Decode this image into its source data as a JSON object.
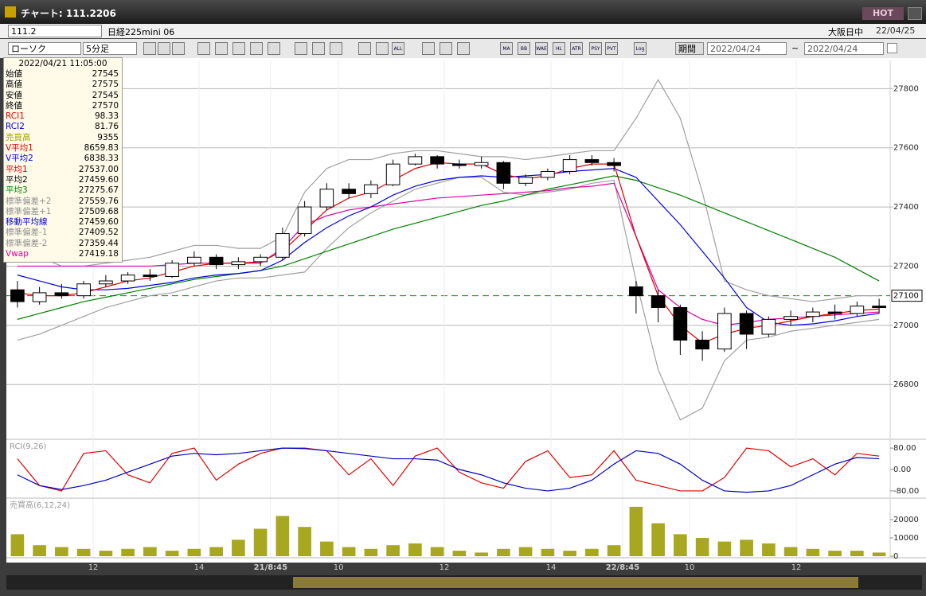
{
  "window": {
    "title": "チャート: 111.2206",
    "hot_button": "HOT"
  },
  "header": {
    "symbol_code": "111.2",
    "symbol_name": "日経225mini 06",
    "session": "大阪日中",
    "date": "22/04/25"
  },
  "toolbar": {
    "chart_style": "ローソク",
    "interval": "5分足",
    "icon_labels": [
      "ALL",
      "MA",
      "BB",
      "WAE",
      "HL",
      "ATR",
      "PSY",
      "PVT",
      "Log"
    ],
    "period_button": "期間",
    "date_from": "2022/04/24",
    "range_sep": "~",
    "date_to": "2022/04/24"
  },
  "info_panel": {
    "datetime": "2022/04/21 11:05:00",
    "rows": [
      {
        "label": "始値",
        "value": "27545",
        "color": "#000000"
      },
      {
        "label": "高値",
        "value": "27575",
        "color": "#000000"
      },
      {
        "label": "安値",
        "value": "27545",
        "color": "#000000"
      },
      {
        "label": "終値",
        "value": "27570",
        "color": "#000000"
      },
      {
        "label": "RCI1",
        "value": "98.33",
        "color": "#e00000"
      },
      {
        "label": "RCI2",
        "value": "81.76",
        "color": "#0000e0"
      },
      {
        "label": "売買高",
        "value": "9355",
        "color": "#a0a000"
      },
      {
        "label": "V平均1",
        "value": "8659.83",
        "color": "#e00000"
      },
      {
        "label": "V平均2",
        "value": "6838.33",
        "color": "#0000e0"
      },
      {
        "label": "平均1",
        "value": "27537.00",
        "color": "#e00000"
      },
      {
        "label": "平均2",
        "value": "27459.60",
        "color": "#000000"
      },
      {
        "label": "平均3",
        "value": "27275.67",
        "color": "#008000"
      },
      {
        "label": "標準偏差+2",
        "value": "27559.76",
        "color": "#909090"
      },
      {
        "label": "標準偏差+1",
        "value": "27509.68",
        "color": "#909090"
      },
      {
        "label": "移動平均線",
        "value": "27459.60",
        "color": "#0000e0"
      },
      {
        "label": "標準偏差-1",
        "value": "27409.52",
        "color": "#909090"
      },
      {
        "label": "標準偏差-2",
        "value": "27359.44",
        "color": "#909090"
      },
      {
        "label": "Vwap",
        "value": "27419.18",
        "color": "#e000a0"
      }
    ]
  },
  "chart_data": [
    {
      "type": "candlestick",
      "xlim": [
        0,
        40
      ],
      "xticks": [
        {
          "value": 3.93,
          "label": "12"
        },
        {
          "value": 8.72,
          "label": "14"
        },
        {
          "value": 11.96,
          "label": "21/8:45"
        },
        {
          "value": 15.03,
          "label": "10"
        },
        {
          "value": 19.82,
          "label": "12"
        },
        {
          "value": 24.65,
          "label": "14"
        },
        {
          "value": 27.89,
          "label": "22/8:45"
        },
        {
          "value": 30.92,
          "label": "10"
        },
        {
          "value": 35.75,
          "label": "12"
        }
      ],
      "ylim": [
        26615,
        27895
      ],
      "yticks": [
        26800,
        27000,
        27200,
        27400,
        27600,
        27800
      ],
      "grid": true,
      "reference_line": 27100,
      "candles": [
        [
          27120,
          27150,
          27060,
          27080
        ],
        [
          27080,
          27130,
          27070,
          27110
        ],
        [
          27110,
          27140,
          27090,
          27100
        ],
        [
          27100,
          27150,
          27090,
          27140
        ],
        [
          27140,
          27170,
          27130,
          27150
        ],
        [
          27150,
          27180,
          27140,
          27170
        ],
        [
          27170,
          27190,
          27150,
          27165
        ],
        [
          27165,
          27220,
          27160,
          27210
        ],
        [
          27210,
          27250,
          27200,
          27230
        ],
        [
          27230,
          27240,
          27190,
          27205
        ],
        [
          27205,
          27230,
          27190,
          27215
        ],
        [
          27215,
          27240,
          27200,
          27230
        ],
        [
          27230,
          27330,
          27220,
          27310
        ],
        [
          27310,
          27420,
          27300,
          27400
        ],
        [
          27400,
          27480,
          27390,
          27460
        ],
        [
          27460,
          27480,
          27430,
          27445
        ],
        [
          27445,
          27490,
          27430,
          27475
        ],
        [
          27475,
          27560,
          27470,
          27545
        ],
        [
          27545,
          27580,
          27540,
          27570
        ],
        [
          27570,
          27575,
          27530,
          27545
        ],
        [
          27545,
          27560,
          27530,
          27540
        ],
        [
          27540,
          27570,
          27530,
          27550
        ],
        [
          27550,
          27555,
          27460,
          27480
        ],
        [
          27480,
          27510,
          27470,
          27500
        ],
        [
          27500,
          27530,
          27490,
          27520
        ],
        [
          27520,
          27575,
          27510,
          27560
        ],
        [
          27560,
          27575,
          27540,
          27550
        ],
        [
          27550,
          27565,
          27520,
          27540
        ],
        [
          27130,
          27150,
          27040,
          27100
        ],
        [
          27100,
          27120,
          27010,
          27060
        ],
        [
          27060,
          27070,
          26900,
          26950
        ],
        [
          26950,
          26980,
          26880,
          26920
        ],
        [
          26920,
          27060,
          26910,
          27040
        ],
        [
          27040,
          27050,
          26920,
          26970
        ],
        [
          26970,
          27030,
          26960,
          27020
        ],
        [
          27020,
          27050,
          27000,
          27030
        ],
        [
          27030,
          27060,
          27010,
          27045
        ],
        [
          27045,
          27070,
          27020,
          27040
        ],
        [
          27040,
          27080,
          27030,
          27065
        ],
        [
          27065,
          27090,
          27040,
          27060
        ]
      ],
      "series": [
        {
          "color": "#a0a0a0",
          "values": [
            27250,
            27230,
            27200,
            27200,
            27210,
            27220,
            27230,
            27250,
            27270,
            27270,
            27260,
            27260,
            27300,
            27450,
            27530,
            27560,
            27560,
            27580,
            27590,
            27590,
            27580,
            27570,
            27570,
            27560,
            27570,
            27580,
            27590,
            27590,
            27700,
            27830,
            27700,
            27450,
            27150,
            27120,
            27100,
            27090,
            27080,
            27090,
            27100,
            27100
          ]
        },
        {
          "color": "#a0a0a0",
          "values": [
            26950,
            26970,
            27000,
            27030,
            27060,
            27080,
            27100,
            27110,
            27130,
            27150,
            27160,
            27160,
            27170,
            27180,
            27260,
            27330,
            27380,
            27420,
            27460,
            27480,
            27500,
            27500,
            27450,
            27440,
            27450,
            27460,
            27480,
            27490,
            27150,
            26850,
            26680,
            26720,
            26880,
            26950,
            26960,
            26980,
            26990,
            27000,
            27010,
            27020
          ]
        },
        {
          "color": "#008000",
          "values": [
            27020,
            27040,
            27060,
            27080,
            27095,
            27110,
            27125,
            27140,
            27155,
            27165,
            27175,
            27185,
            27200,
            27225,
            27250,
            27275,
            27300,
            27325,
            27345,
            27365,
            27385,
            27405,
            27420,
            27440,
            27460,
            27475,
            27490,
            27505,
            27490,
            27465,
            27440,
            27410,
            27380,
            27350,
            27320,
            27290,
            27260,
            27230,
            27190,
            27150
          ]
        },
        {
          "color": "#e000a0",
          "values": [
            27200,
            27200,
            27200,
            27200,
            27200,
            27200,
            27200,
            27205,
            27210,
            27210,
            27210,
            27210,
            27260,
            27340,
            27370,
            27390,
            27400,
            27410,
            27420,
            27430,
            27435,
            27440,
            27445,
            27450,
            27455,
            27465,
            27470,
            27480,
            27300,
            27120,
            27060,
            27020,
            27000,
            27010,
            27020,
            27025,
            27030,
            27035,
            27040,
            27045
          ]
        },
        {
          "color": "#0000e0",
          "values": [
            27170,
            27150,
            27130,
            27120,
            27120,
            27125,
            27135,
            27145,
            27160,
            27170,
            27175,
            27185,
            27220,
            27280,
            27330,
            27370,
            27400,
            27440,
            27470,
            27490,
            27500,
            27505,
            27500,
            27505,
            27510,
            27520,
            27525,
            27530,
            27500,
            27420,
            27340,
            27250,
            27160,
            27060,
            27010,
            27000,
            27005,
            27015,
            27030,
            27040
          ]
        },
        {
          "color": "#e00000",
          "values": [
            27110,
            27100,
            27100,
            27110,
            27130,
            27150,
            27160,
            27180,
            27200,
            27210,
            27210,
            27215,
            27250,
            27320,
            27390,
            27430,
            27450,
            27490,
            27530,
            27550,
            27545,
            27545,
            27510,
            27495,
            27505,
            27530,
            27545,
            27545,
            27300,
            27100,
            27000,
            26940,
            26970,
            26990,
            27000,
            27015,
            27030,
            27040,
            27050,
            27055
          ]
        }
      ]
    },
    {
      "type": "line",
      "title": "RCI(9,26)",
      "xlim": [
        0,
        40
      ],
      "ylim": [
        -107,
        110
      ],
      "yticks": [
        {
          "value": 80,
          "label": "80.00"
        },
        {
          "value": 0,
          "label": "0.00"
        },
        {
          "value": -80,
          "label": "-80.00"
        }
      ],
      "series": [
        {
          "color": "#e00000",
          "values": [
            40,
            -60,
            -80,
            60,
            70,
            -20,
            -50,
            60,
            80,
            -40,
            20,
            60,
            80,
            80,
            70,
            -20,
            40,
            -60,
            50,
            80,
            -10,
            -50,
            -70,
            30,
            70,
            -30,
            -20,
            70,
            -40,
            -60,
            -80,
            -80,
            -30,
            80,
            70,
            10,
            40,
            -20,
            60,
            50
          ]
        },
        {
          "color": "#0000c0",
          "values": [
            -20,
            -60,
            -75,
            -60,
            -40,
            -10,
            20,
            50,
            60,
            55,
            60,
            70,
            80,
            78,
            70,
            60,
            50,
            40,
            40,
            35,
            0,
            -20,
            -50,
            -70,
            -80,
            -70,
            -40,
            20,
            70,
            60,
            20,
            -40,
            -80,
            -85,
            -80,
            -60,
            -20,
            20,
            45,
            40
          ]
        }
      ]
    },
    {
      "type": "bar",
      "title": "売買高(6,12,24)",
      "xlim": [
        0,
        40
      ],
      "ylim": [
        -870,
        31300
      ],
      "yticks": [
        0,
        10000,
        20000
      ],
      "color": "#a8a820",
      "values": [
        12000,
        6000,
        5000,
        4000,
        3000,
        4000,
        5000,
        3000,
        4000,
        5000,
        9000,
        15000,
        22000,
        16000,
        8000,
        5000,
        4000,
        6000,
        7000,
        5000,
        3000,
        2000,
        4000,
        5000,
        4000,
        3000,
        4000,
        6000,
        27000,
        18000,
        12000,
        10000,
        8000,
        9000,
        7000,
        5000,
        4000,
        3000,
        3000,
        2000
      ]
    }
  ]
}
